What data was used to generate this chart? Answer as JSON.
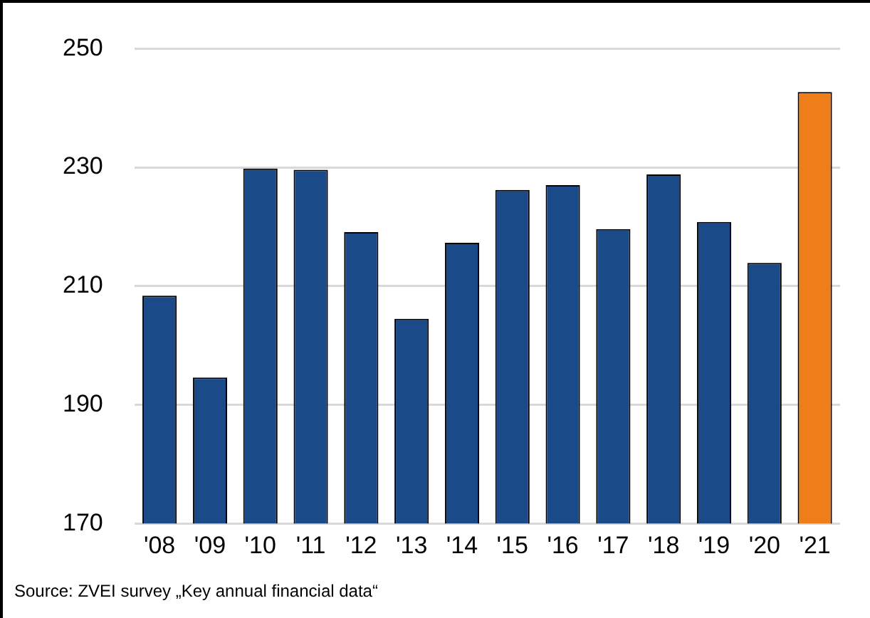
{
  "chart_data": {
    "type": "bar",
    "categories": [
      "'08",
      "'09",
      "'10",
      "'11",
      "'12",
      "'13",
      "'14",
      "'15",
      "'16",
      "'17",
      "'18",
      "'19",
      "'20",
      "'21"
    ],
    "values": [
      208.4,
      194.6,
      229.8,
      229.6,
      219.1,
      204.5,
      217.3,
      226.2,
      227.0,
      219.6,
      228.8,
      220.8,
      213.9,
      242.7
    ],
    "colors": [
      "#1a4a87",
      "#1a4a87",
      "#1a4a87",
      "#1a4a87",
      "#1a4a87",
      "#1a4a87",
      "#1a4a87",
      "#1a4a87",
      "#1a4a87",
      "#1a4a87",
      "#1a4a87",
      "#1a4a87",
      "#1a4a87",
      "#ee7d1a"
    ],
    "ylim": [
      170,
      250
    ],
    "yticks": [
      170,
      190,
      210,
      230,
      250
    ],
    "grid": "y",
    "legend": false,
    "annotations": [
      "Source: ZVEI survey „Key annual financial data“"
    ]
  }
}
